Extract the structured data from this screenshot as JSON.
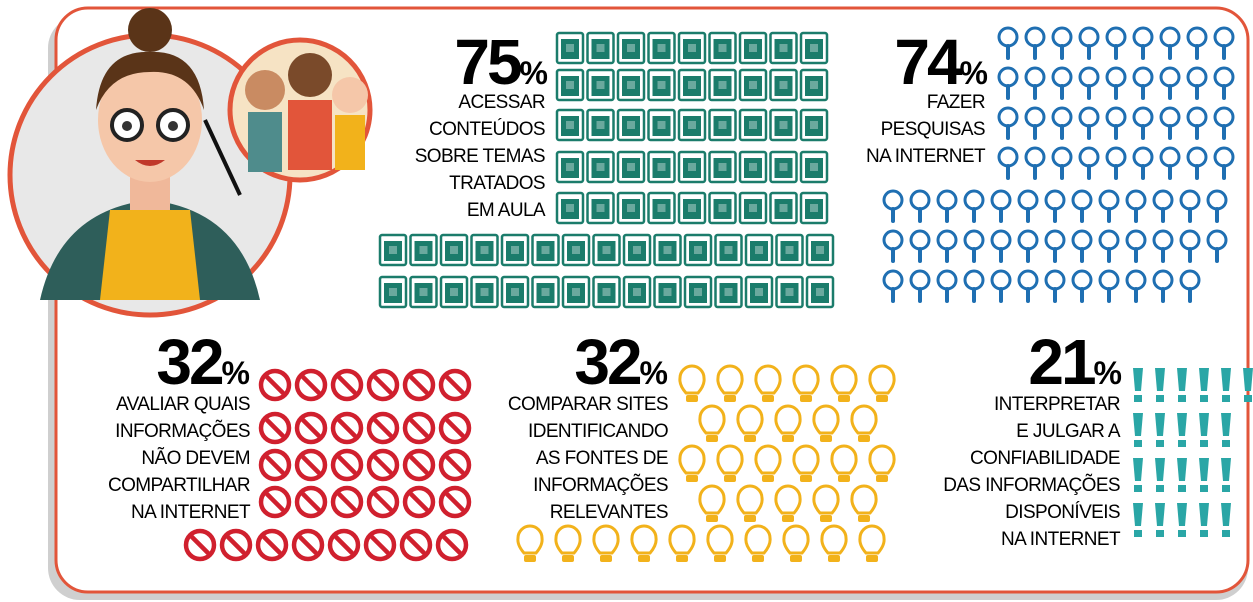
{
  "items": [
    {
      "value": 75,
      "unit": "%",
      "label": [
        "ACESSAR",
        "CONTEÚDOS",
        "SOBRE TEMAS",
        "TRATADOS",
        "EM AULA"
      ]
    },
    {
      "value": 74,
      "unit": "%",
      "label": [
        "FAZER",
        "PESQUISAS",
        "NA INTERNET"
      ]
    },
    {
      "value": 32,
      "unit": "%",
      "label": [
        "AVALIAR QUAIS",
        "INFORMAÇÕES",
        "NÃO DEVEM",
        "COMPARTILHAR",
        "NA INTERNET"
      ]
    },
    {
      "value": 32,
      "unit": "%",
      "label": [
        "COMPARAR SITES",
        "IDENTIFICANDO",
        "AS FONTES DE",
        "INFORMAÇÕES",
        "RELEVANTES"
      ]
    },
    {
      "value": 21,
      "unit": "%",
      "label": [
        "INTERPRETAR",
        "E JULGAR A",
        "CONFIABILIDADE",
        "DAS INFORMAÇÕES",
        "DISPONÍVEIS",
        "NA INTERNET"
      ]
    }
  ]
}
